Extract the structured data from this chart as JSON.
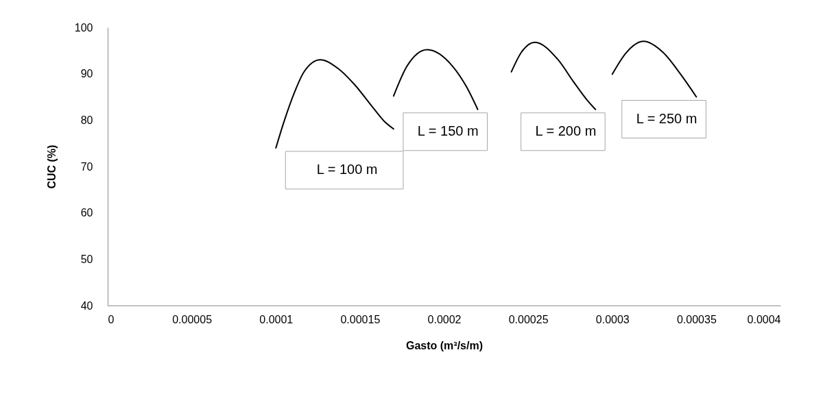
{
  "chart_data": {
    "type": "line",
    "xlabel": "Gasto (m³/s/m)",
    "ylabel": "CUC (%)",
    "xlim": [
      0,
      0.0004
    ],
    "xticks": [
      0,
      {
        "value": 5e-05,
        "label": "0.00005"
      },
      0.0001,
      0.00015,
      0.0002,
      0.00025,
      0.0003,
      0.00035,
      0.0004
    ],
    "ylim": [
      40,
      100
    ],
    "yticks": [
      40,
      50,
      60,
      70,
      80,
      90,
      100
    ],
    "grid": false,
    "legend": false,
    "marker": "none",
    "line_style": "solid",
    "series": [
      {
        "name": "L = 100 m",
        "color": "#000000",
        "x": [
          0.0001,
          0.0001045,
          0.0001113,
          0.0001167,
          0.0001264,
          0.0001371,
          0.0001467,
          0.0001575,
          0.0001643,
          0.00017
        ],
        "values": [
          74,
          79.3,
          86.2,
          90.4,
          93,
          91.1,
          87.7,
          82.8,
          79.8,
          78.1
        ]
      },
      {
        "name": "L = 150 m",
        "color": "#000000",
        "x": [
          0.00017,
          0.0001779,
          0.00019,
          0.0002051,
          0.0002133,
          0.00022
        ],
        "values": [
          85.2,
          91.6,
          95.2,
          91.6,
          87.2,
          82.3
        ]
      },
      {
        "name": "L = 200 m",
        "color": "#000000",
        "x": [
          0.00024,
          0.0002459,
          0.000254,
          0.0002676,
          0.0002771,
          0.0002853,
          0.00029
        ],
        "values": [
          90.4,
          94.6,
          96.8,
          93.1,
          88.2,
          84.2,
          82.3
        ]
      },
      {
        "name": "L = 250 m",
        "color": "#000000",
        "x": [
          0.0003,
          0.0003084,
          0.0003186,
          0.0003302,
          0.000341,
          0.00035
        ],
        "values": [
          89.9,
          94.6,
          97,
          94.6,
          89.7,
          85
        ]
      }
    ]
  }
}
